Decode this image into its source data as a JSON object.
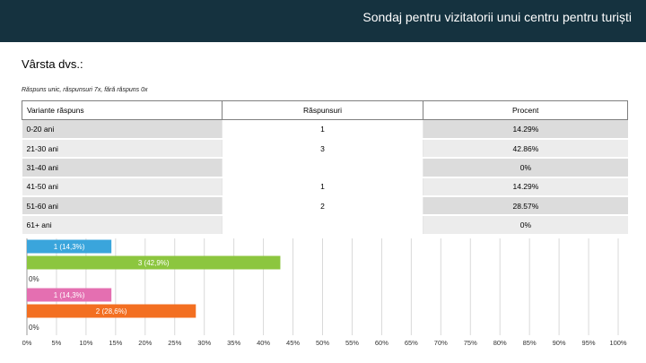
{
  "header": {
    "title": "Sondaj pentru vizitatorii unui centru pentru turiști"
  },
  "question": {
    "title": "Vârsta dvs.:"
  },
  "note": "Răspuns unic, răspunsuri 7x, fără răspuns 0x",
  "table": {
    "headers": [
      "Variante răspuns",
      "Răspunsuri",
      "Procent"
    ],
    "rows": [
      {
        "label": "0-20 ani",
        "count": "1",
        "percent": "14.29%"
      },
      {
        "label": "21-30 ani",
        "count": "3",
        "percent": "42.86%"
      },
      {
        "label": "31-40 ani",
        "count": "",
        "percent": "0%"
      },
      {
        "label": "41-50 ani",
        "count": "1",
        "percent": "14.29%"
      },
      {
        "label": "51-60 ani",
        "count": "2",
        "percent": "28.57%"
      },
      {
        "label": "61+ ani",
        "count": "",
        "percent": "0%"
      }
    ]
  },
  "chart_data": {
    "type": "bar",
    "orientation": "horizontal",
    "categories": [
      "0-20 ani",
      "21-30 ani",
      "31-40 ani",
      "41-50 ani",
      "51-60 ani",
      "61+ ani"
    ],
    "values": [
      14.29,
      42.86,
      0,
      14.29,
      28.57,
      0
    ],
    "bar_labels": [
      "1 (14,3%)",
      "3 (42,9%)",
      "0%",
      "1 (14,3%)",
      "2 (28,6%)",
      "0%"
    ],
    "colors": [
      "#3aa5dc",
      "#8cc63f",
      "#3aa5dc",
      "#e46fb1",
      "#f36f21",
      "#3aa5dc"
    ],
    "xlim": [
      0,
      100
    ],
    "xticks": [
      "0%",
      "5%",
      "10%",
      "15%",
      "20%",
      "25%",
      "30%",
      "35%",
      "40%",
      "45%",
      "50%",
      "55%",
      "60%",
      "65%",
      "70%",
      "75%",
      "80%",
      "85%",
      "90%",
      "95%",
      "100%"
    ],
    "grid": true
  }
}
